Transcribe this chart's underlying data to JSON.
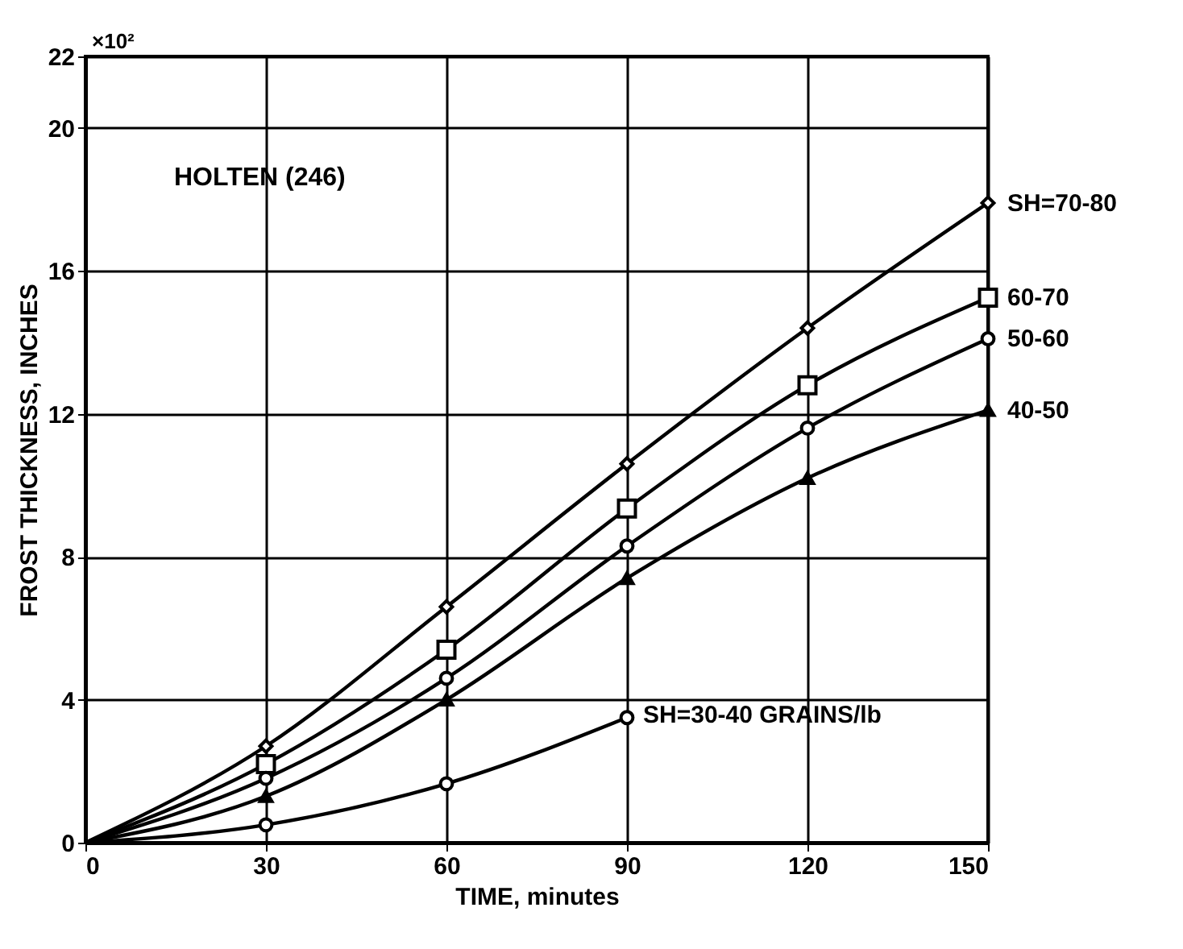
{
  "chart_data": {
    "type": "line",
    "xlabel": "TIME, minutes",
    "ylabel": "FROST THICKNESS, INCHES",
    "annotations": [
      "HOLTEN (246)",
      "×10²"
    ],
    "x": [
      0,
      30,
      60,
      90,
      120,
      150
    ],
    "series": [
      {
        "name": "SH=70-80",
        "color": "#000000",
        "marker": "diamond",
        "values": [
          0,
          2.7,
          6.6,
          10.6,
          14.4,
          17.9
        ]
      },
      {
        "name": "60-70",
        "color": "#000000",
        "marker": "square",
        "values": [
          0,
          2.2,
          5.4,
          9.35,
          12.8,
          15.25
        ]
      },
      {
        "name": "50-60",
        "color": "#000000",
        "marker": "circle",
        "values": [
          0,
          1.8,
          4.6,
          8.3,
          11.6,
          14.1
        ]
      },
      {
        "name": "40-50",
        "color": "#000000",
        "marker": "triangle",
        "values": [
          0,
          1.3,
          4.0,
          7.4,
          10.2,
          12.1
        ]
      },
      {
        "name": "SH=30-40 GRAINS/lb",
        "color": "#000000",
        "marker": "circle",
        "x": [
          0,
          30,
          60,
          90
        ],
        "values": [
          0,
          0.5,
          1.65,
          3.5
        ]
      }
    ],
    "xlim": [
      0,
      150
    ],
    "xticks": [
      0,
      30,
      60,
      90,
      120,
      150
    ],
    "ylim": [
      0,
      22
    ],
    "yticks": [
      0,
      4,
      8,
      12,
      16,
      20,
      22
    ],
    "grid": true
  }
}
